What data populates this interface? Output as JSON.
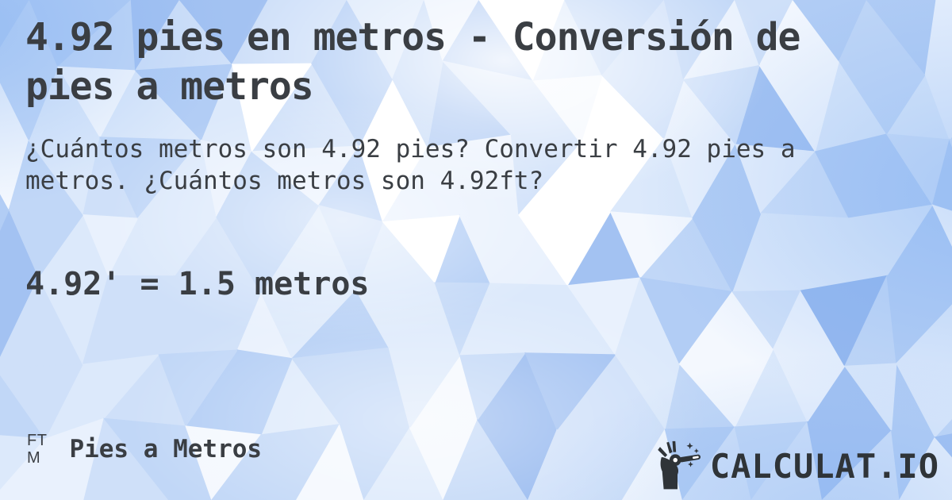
{
  "colors": {
    "text": "#3a3e43",
    "brand_text": "#2f3438",
    "background_base": "#c9dcf8",
    "pattern_palette": [
      "#ffffff",
      "#f4f8fe",
      "#e9f1fd",
      "#dce9fb",
      "#cfe0f9",
      "#c1d7f7",
      "#b2cdf5",
      "#a3c2f2",
      "#95b8ef"
    ]
  },
  "header": {
    "title": "4.92 pies en metros - Conversión de pies a metros",
    "subtitle": "¿Cuántos metros son 4.92 pies? Convertir 4.92 pies a metros. ¿Cuántos metros son 4.92ft?"
  },
  "result": {
    "text": "4.92' = 1.5 metros"
  },
  "footer": {
    "converter": {
      "unit_top": "FT",
      "unit_bottom": "M",
      "label": "Pies a Metros"
    },
    "brand": {
      "name": "CALCULAT.IO",
      "icon": "magic-wand-hand-icon"
    }
  }
}
